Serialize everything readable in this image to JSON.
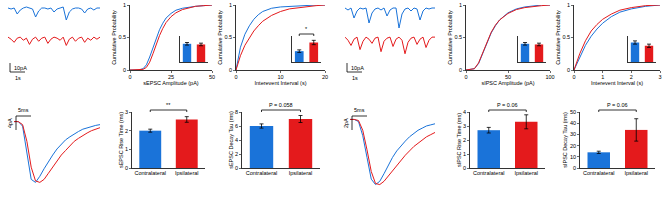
{
  "chart_data": [
    {
      "type": "line",
      "x": [
        0,
        0.1,
        0.2,
        0.3,
        0.4,
        0.5,
        0.6,
        0.7,
        0.8,
        0.9,
        1,
        1.1,
        1.2,
        1.3,
        1.4,
        1.5,
        1.6,
        1.7,
        1.8,
        1.9,
        2,
        2.1,
        2.2,
        2.3,
        2.4,
        2.5,
        2.6,
        2.7,
        2.8,
        2.9,
        3
      ],
      "xlim": [
        0,
        3
      ],
      "ylim": [
        -22,
        3
      ],
      "tick_labels": false,
      "series": [
        {
          "color": "#1a73d9",
          "values": [
            0,
            -1,
            0,
            -6,
            -2,
            0,
            1,
            0,
            -1,
            -9,
            -3,
            0,
            0,
            -1,
            0,
            -4,
            -1,
            0,
            1,
            -12,
            -4,
            -1,
            0,
            0,
            -1,
            -5,
            -1,
            0,
            -2,
            0,
            0
          ]
        }
      ]
    },
    {
      "type": "line",
      "x": [
        0,
        0.1,
        0.2,
        0.3,
        0.4,
        0.5,
        0.6,
        0.7,
        0.8,
        0.9,
        1,
        1.1,
        1.2,
        1.3,
        1.4,
        1.5,
        1.6,
        1.7,
        1.8,
        1.9,
        2,
        2.1,
        2.2,
        2.3,
        2.4,
        2.5,
        2.6,
        2.7,
        2.8,
        2.9,
        3
      ],
      "xlim": [
        0,
        3
      ],
      "ylim": [
        -22,
        3
      ],
      "tick_labels": false,
      "scale_bar": [
        "1s",
        "10pA"
      ],
      "series": [
        {
          "color": "#e41a1c",
          "values": [
            0,
            -2,
            -5,
            -1,
            0,
            -3,
            -1,
            -7,
            -2,
            0,
            -4,
            -1,
            0,
            -6,
            -2,
            0,
            -1,
            -3,
            0,
            -8,
            -2,
            0,
            -4,
            -1,
            0,
            -5,
            -1,
            -3,
            0,
            -2,
            0
          ]
        }
      ]
    },
    {
      "type": "line",
      "x_label": "sEPSC Amplitude (pA)",
      "y_label": "Cumulative Probability",
      "x": [
        0,
        5,
        8,
        10,
        12,
        14,
        16,
        18,
        20,
        22,
        25,
        28,
        32,
        36,
        40,
        45,
        50
      ],
      "xlim": [
        0,
        50
      ],
      "ylim": [
        0,
        1
      ],
      "xticks": [
        0,
        25,
        50
      ],
      "yticks": [
        0,
        0.5,
        1
      ],
      "series": [
        {
          "color": "#1a73d9",
          "values": [
            0,
            0,
            0.02,
            0.08,
            0.2,
            0.35,
            0.5,
            0.62,
            0.72,
            0.8,
            0.87,
            0.92,
            0.95,
            0.97,
            0.98,
            0.99,
            1
          ]
        },
        {
          "color": "#e41a1c",
          "values": [
            0,
            0,
            0.01,
            0.04,
            0.12,
            0.25,
            0.4,
            0.53,
            0.64,
            0.73,
            0.82,
            0.88,
            0.93,
            0.96,
            0.98,
            0.99,
            1
          ]
        }
      ]
    },
    {
      "type": "bar",
      "categories": [
        "Contralateral",
        "Ipsilateral"
      ],
      "values": [
        14,
        13.5
      ],
      "error": [
        1,
        1
      ],
      "colors": [
        "#1a73d9",
        "#e41a1c"
      ],
      "ylim": [
        0,
        20
      ],
      "yticks": [],
      "tick_labels": false
    },
    {
      "type": "line",
      "x_label": "Interevent Interval (s)",
      "y_label": "Cumulative Probability",
      "x": [
        0,
        0.5,
        1,
        2,
        3,
        4,
        5,
        6,
        8,
        10,
        12,
        15,
        18,
        20
      ],
      "xlim": [
        0,
        20
      ],
      "ylim": [
        0,
        1
      ],
      "xticks": [
        0,
        10,
        20
      ],
      "yticks": [
        0,
        0.5,
        1
      ],
      "series": [
        {
          "color": "#1a73d9",
          "values": [
            0,
            0.2,
            0.35,
            0.55,
            0.68,
            0.78,
            0.85,
            0.9,
            0.95,
            0.97,
            0.98,
            0.99,
            1,
            1
          ]
        },
        {
          "color": "#e41a1c",
          "values": [
            0,
            0.12,
            0.22,
            0.38,
            0.5,
            0.6,
            0.68,
            0.75,
            0.84,
            0.9,
            0.94,
            0.97,
            0.99,
            1
          ]
        }
      ]
    },
    {
      "type": "bar",
      "categories": [
        "Contralateral",
        "Ipsilateral"
      ],
      "values": [
        2.5,
        4.5
      ],
      "error": [
        0.3,
        0.5
      ],
      "colors": [
        "#1a73d9",
        "#e41a1c"
      ],
      "ylim": [
        0,
        6
      ],
      "yticks": [],
      "tick_labels": false,
      "significance": "*"
    },
    {
      "type": "line",
      "x": [
        0,
        1,
        2,
        3,
        4,
        5,
        6,
        7,
        8,
        9,
        10,
        11,
        12,
        13,
        14,
        15,
        16,
        17,
        18,
        19,
        20
      ],
      "xlim": [
        0,
        20
      ],
      "ylim": [
        -4.5,
        0.5
      ],
      "tick_labels": false,
      "scale_bar": [
        "5ms",
        "4pA"
      ],
      "series": [
        {
          "color": "#1a73d9",
          "values": [
            0,
            0,
            -0.3,
            -2,
            -3.8,
            -4,
            -3.6,
            -3.1,
            -2.6,
            -2.2,
            -1.8,
            -1.5,
            -1.2,
            -1,
            -0.8,
            -0.65,
            -0.5,
            -0.4,
            -0.3,
            -0.25,
            -0.2
          ]
        },
        {
          "color": "#e41a1c",
          "values": [
            0,
            0,
            -0.2,
            -1.3,
            -3,
            -3.9,
            -4,
            -3.8,
            -3.4,
            -3,
            -2.6,
            -2.2,
            -1.9,
            -1.6,
            -1.3,
            -1.1,
            -0.9,
            -0.75,
            -0.6,
            -0.5,
            -0.4
          ]
        }
      ]
    },
    {
      "type": "bar",
      "y_label": "sEPSC Rise Time (ms)",
      "categories": [
        "Contralateral",
        "Ipsilateral"
      ],
      "values": [
        2.0,
        2.6
      ],
      "error": [
        0.08,
        0.15
      ],
      "colors": [
        "#1a73d9",
        "#e41a1c"
      ],
      "ylim": [
        0,
        3
      ],
      "yticks": [
        0,
        1,
        2,
        3
      ],
      "significance": "**"
    },
    {
      "type": "bar",
      "y_label": "sEPSC Decay Tau (ms)",
      "categories": [
        "Contralateral",
        "Ipsilateral"
      ],
      "values": [
        6.0,
        7.0
      ],
      "error": [
        0.3,
        0.5
      ],
      "colors": [
        "#1a73d9",
        "#e41a1c"
      ],
      "ylim": [
        0,
        8
      ],
      "yticks": [
        0,
        2,
        4,
        6,
        8
      ],
      "significance": "P = 0.058"
    },
    {
      "type": "line",
      "x": [
        0,
        0.1,
        0.2,
        0.3,
        0.4,
        0.5,
        0.6,
        0.7,
        0.8,
        0.9,
        1,
        1.1,
        1.2,
        1.3,
        1.4,
        1.5,
        1.6,
        1.7,
        1.8,
        1.9,
        2,
        2.1,
        2.2,
        2.3,
        2.4,
        2.5,
        2.6,
        2.7,
        2.8,
        2.9,
        3
      ],
      "xlim": [
        0,
        3
      ],
      "ylim": [
        -22,
        3
      ],
      "tick_labels": false,
      "series": [
        {
          "color": "#1a73d9",
          "values": [
            0,
            -2,
            0,
            -10,
            -3,
            0,
            -1,
            0,
            -15,
            -5,
            -1,
            0,
            -2,
            0,
            -8,
            -2,
            0,
            0,
            -20,
            -6,
            -1,
            0,
            -3,
            0,
            -1,
            -12,
            -3,
            0,
            -1,
            0,
            0
          ]
        }
      ]
    },
    {
      "type": "line",
      "x": [
        0,
        0.1,
        0.2,
        0.3,
        0.4,
        0.5,
        0.6,
        0.7,
        0.8,
        0.9,
        1,
        1.1,
        1.2,
        1.3,
        1.4,
        1.5,
        1.6,
        1.7,
        1.8,
        1.9,
        2,
        2.1,
        2.2,
        2.3,
        2.4,
        2.5,
        2.6,
        2.7,
        2.8,
        2.9,
        3
      ],
      "xlim": [
        0,
        3
      ],
      "ylim": [
        -22,
        3
      ],
      "tick_labels": false,
      "scale_bar": [
        "1s",
        "10pA"
      ],
      "series": [
        {
          "color": "#e41a1c",
          "values": [
            0,
            -3,
            -8,
            -2,
            0,
            -12,
            -4,
            0,
            -2,
            -6,
            -1,
            0,
            -14,
            -4,
            -1,
            0,
            -9,
            -2,
            0,
            -3,
            -16,
            -5,
            -1,
            0,
            -7,
            -2,
            0,
            -10,
            -3,
            0,
            0
          ]
        }
      ]
    },
    {
      "type": "line",
      "x_label": "sIPSC Amplitude (pA)",
      "y_label": "Cumulative Probability",
      "x": [
        0,
        10,
        15,
        20,
        25,
        30,
        35,
        40,
        50,
        60,
        70,
        80,
        90,
        100
      ],
      "xlim": [
        0,
        100
      ],
      "ylim": [
        0,
        1
      ],
      "xticks": [
        0,
        50,
        100
      ],
      "yticks": [
        0,
        0.5,
        1
      ],
      "series": [
        {
          "color": "#1a73d9",
          "values": [
            0,
            0.02,
            0.1,
            0.25,
            0.42,
            0.57,
            0.68,
            0.77,
            0.88,
            0.94,
            0.97,
            0.99,
            1,
            1
          ]
        },
        {
          "color": "#e41a1c",
          "values": [
            0,
            0.02,
            0.11,
            0.27,
            0.44,
            0.58,
            0.69,
            0.77,
            0.87,
            0.93,
            0.96,
            0.98,
            0.99,
            1
          ]
        }
      ]
    },
    {
      "type": "bar",
      "categories": [
        "Contralateral",
        "Ipsilateral"
      ],
      "values": [
        28,
        27
      ],
      "error": [
        2,
        2
      ],
      "colors": [
        "#1a73d9",
        "#e41a1c"
      ],
      "ylim": [
        0,
        40
      ],
      "yticks": [],
      "tick_labels": false
    },
    {
      "type": "line",
      "x_label": "Interevent Interval (s)",
      "y_label": "Cumulative Probability",
      "x": [
        0,
        0.1,
        0.2,
        0.4,
        0.6,
        0.8,
        1,
        1.3,
        1.6,
        2,
        2.5,
        3
      ],
      "xlim": [
        0,
        3
      ],
      "ylim": [
        0,
        1
      ],
      "xticks": [
        0,
        1,
        2,
        3
      ],
      "yticks": [
        0,
        0.5,
        1
      ],
      "series": [
        {
          "color": "#1a73d9",
          "values": [
            0,
            0.1,
            0.2,
            0.38,
            0.52,
            0.63,
            0.72,
            0.82,
            0.89,
            0.94,
            0.98,
            1
          ]
        },
        {
          "color": "#e41a1c",
          "values": [
            0,
            0.13,
            0.25,
            0.45,
            0.6,
            0.7,
            0.78,
            0.86,
            0.92,
            0.96,
            0.99,
            1
          ]
        }
      ]
    },
    {
      "type": "bar",
      "categories": [
        "Contralateral",
        "Ipsilateral"
      ],
      "values": [
        0.6,
        0.5
      ],
      "error": [
        0.05,
        0.05
      ],
      "colors": [
        "#1a73d9",
        "#e41a1c"
      ],
      "ylim": [
        0,
        0.8
      ],
      "yticks": [],
      "tick_labels": false
    },
    {
      "type": "line",
      "x": [
        0,
        1,
        2,
        3,
        4,
        5,
        6,
        7,
        8,
        9,
        10,
        11,
        12,
        13,
        14,
        15,
        16,
        17,
        18,
        19,
        20
      ],
      "xlim": [
        0,
        20
      ],
      "ylim": [
        -6.5,
        0.5
      ],
      "tick_labels": false,
      "scale_bar": [
        "5ms",
        "2pA"
      ],
      "series": [
        {
          "color": "#1a73d9",
          "values": [
            0,
            0,
            -0.2,
            -1.5,
            -3.5,
            -5.5,
            -6,
            -5.7,
            -5,
            -4.2,
            -3.5,
            -2.9,
            -2.4,
            -2,
            -1.6,
            -1.3,
            -1,
            -0.8,
            -0.6,
            -0.5,
            -0.4
          ]
        },
        {
          "color": "#e41a1c",
          "values": [
            0,
            0,
            -0.1,
            -1,
            -2.8,
            -4.8,
            -5.9,
            -6,
            -5.7,
            -5.2,
            -4.7,
            -4.2,
            -3.7,
            -3.3,
            -2.9,
            -2.5,
            -2.2,
            -1.9,
            -1.6,
            -1.4,
            -1.2
          ]
        }
      ]
    },
    {
      "type": "bar",
      "y_label": "sIPSC Rise Time (ms)",
      "categories": [
        "Contralateral",
        "Ipsilateral"
      ],
      "values": [
        2.7,
        3.3
      ],
      "error": [
        0.2,
        0.5
      ],
      "colors": [
        "#1a73d9",
        "#e41a1c"
      ],
      "ylim": [
        0,
        4
      ],
      "yticks": [
        0,
        1,
        2,
        3,
        4
      ],
      "significance": "P = 0.06"
    },
    {
      "type": "bar",
      "y_label": "sIPSC Decay Tau (ms)",
      "categories": [
        "Contralateral",
        "Ipsilateral"
      ],
      "values": [
        14,
        34
      ],
      "error": [
        1,
        10
      ],
      "colors": [
        "#1a73d9",
        "#e41a1c"
      ],
      "ylim": [
        0,
        50
      ],
      "yticks": [
        0,
        10,
        20,
        30,
        40,
        50
      ],
      "significance": "P = 0.06"
    }
  ]
}
